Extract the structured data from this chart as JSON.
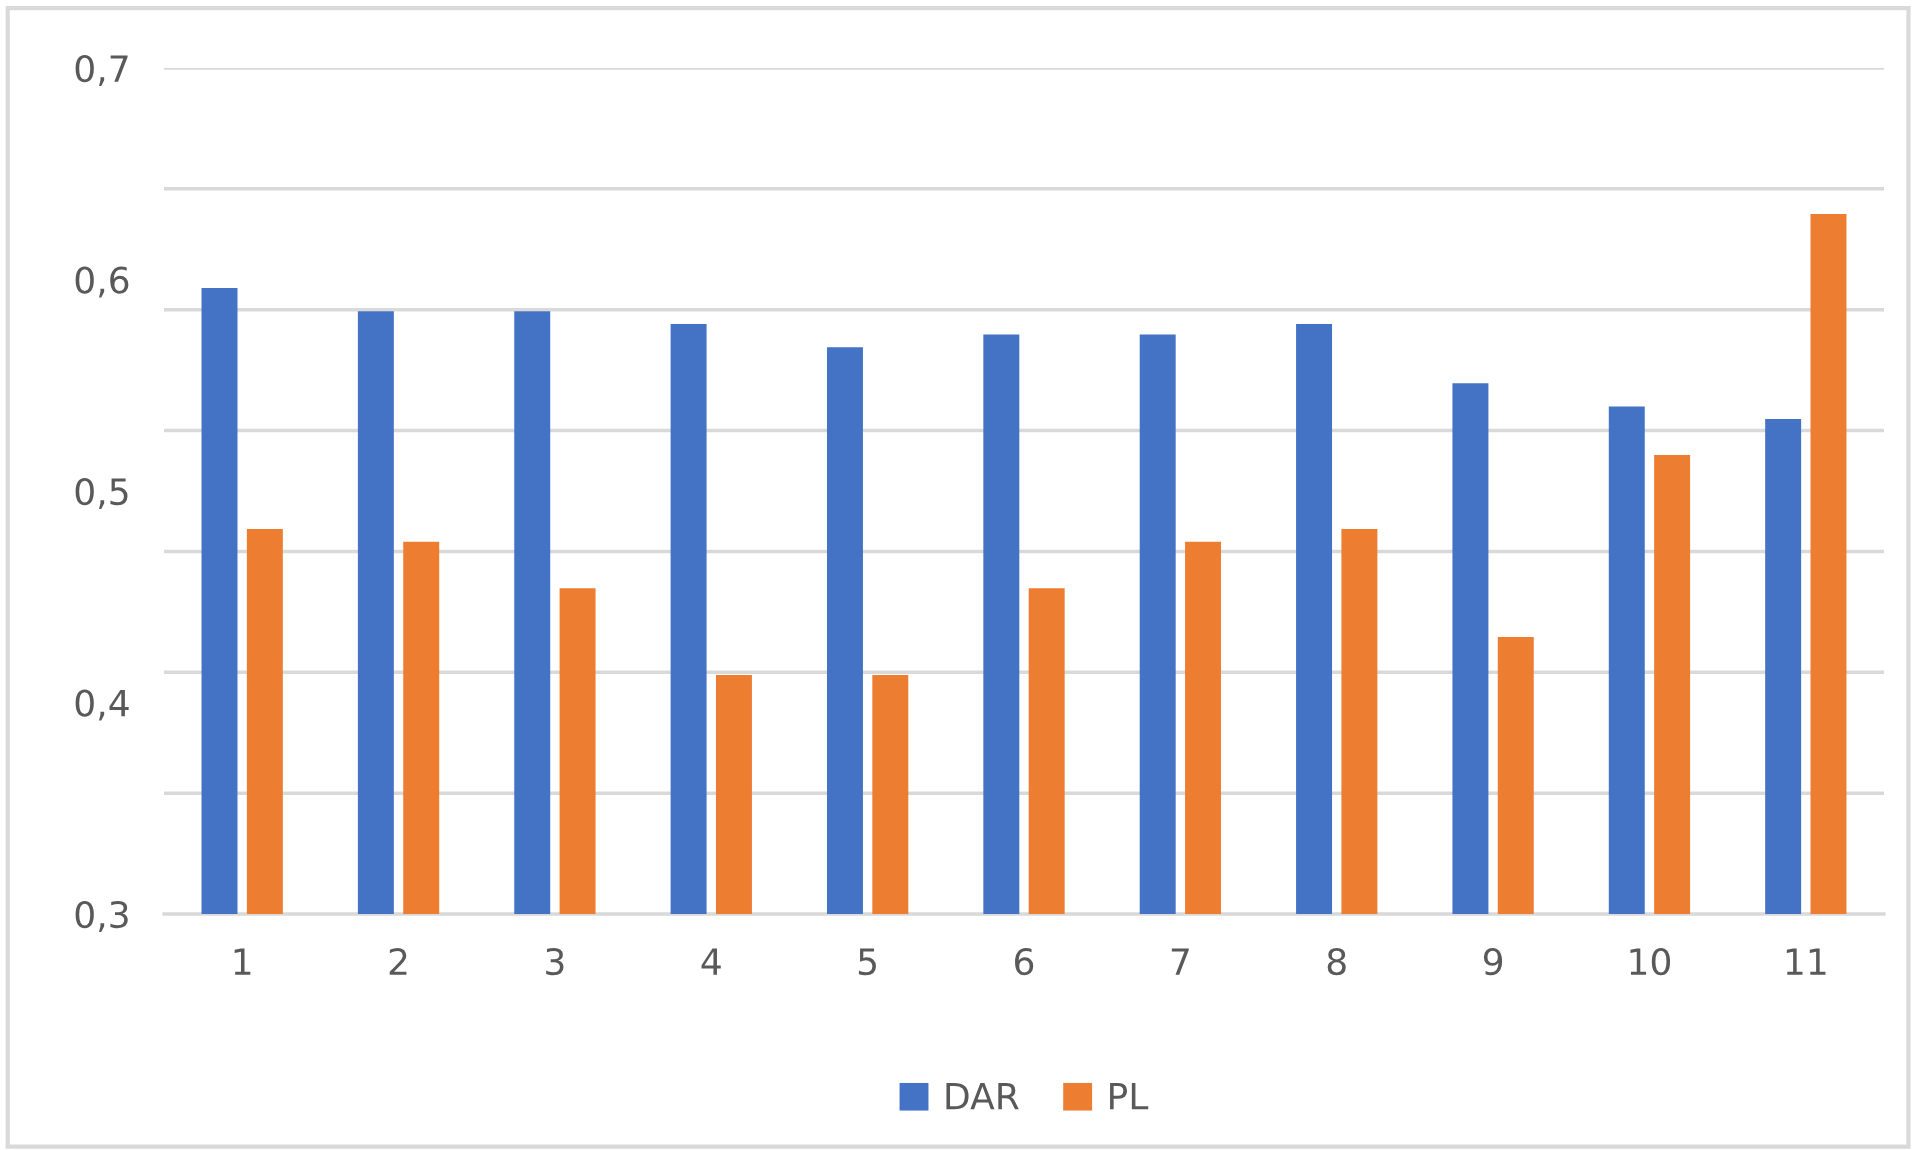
{
  "chart_data": {
    "type": "bar",
    "categories": [
      "1",
      "2",
      "3",
      "4",
      "5",
      "6",
      "7",
      "8",
      "9",
      "10",
      "11"
    ],
    "series": [
      {
        "name": "DAR",
        "color": "#4472c4",
        "values": [
          0.596,
          0.585,
          0.585,
          0.579,
          0.568,
          0.574,
          0.574,
          0.579,
          0.551,
          0.54,
          0.534
        ]
      },
      {
        "name": "PL",
        "color": "#ed7d31",
        "values": [
          0.482,
          0.476,
          0.454,
          0.413,
          0.413,
          0.454,
          0.476,
          0.482,
          0.431,
          0.517,
          0.631
        ]
      }
    ],
    "ylim": [
      0.3,
      0.7
    ],
    "yticks": [
      {
        "value": 0.3,
        "label": "0,3"
      },
      {
        "value": 0.4,
        "label": "0,4"
      },
      {
        "value": 0.5,
        "label": "0,5"
      },
      {
        "value": 0.6,
        "label": "0,6"
      },
      {
        "value": 0.7,
        "label": "0,7"
      },
      {
        "value": 0.3571,
        "label": null
      },
      {
        "value": 0.4143,
        "label": null
      },
      {
        "value": 0.4714,
        "label": null
      },
      {
        "value": 0.5286,
        "label": null
      },
      {
        "value": 0.5857,
        "label": null
      },
      {
        "value": 0.6429,
        "label": null
      }
    ],
    "grid": "y",
    "legend": "bottom"
  }
}
